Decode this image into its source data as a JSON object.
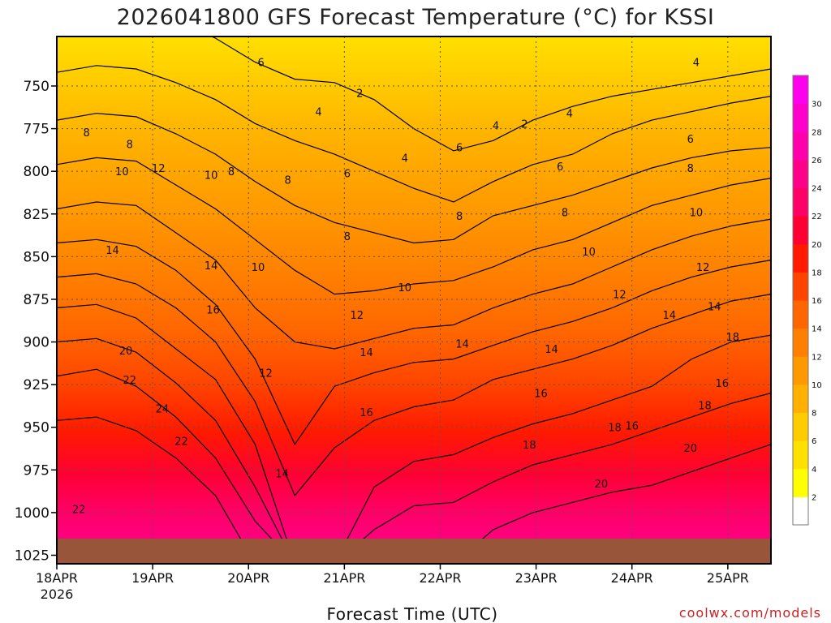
{
  "chart_data": {
    "type": "contour-filled",
    "title": "2026041800 GFS Forecast Temperature (°C) for KSSI",
    "xlabel": "Forecast Time (UTC)",
    "ylabel": "",
    "credit": "coolwx.com/models",
    "x_ticks": [
      "18APR",
      "19APR",
      "20APR",
      "21APR",
      "22APR",
      "23APR",
      "24APR",
      "25APR"
    ],
    "x_year": "2026",
    "y_ticks": [
      "750",
      "775",
      "800",
      "825",
      "850",
      "875",
      "900",
      "925",
      "950",
      "975",
      "1000",
      "1025"
    ],
    "y_unit": "hPa",
    "ylim": [
      1030,
      721
    ],
    "xlim_days": [
      0,
      7.45
    ],
    "grid": true,
    "colorbar": {
      "ticks": [
        "2",
        "4",
        "6",
        "8",
        "10",
        "12",
        "14",
        "16",
        "18",
        "20",
        "22",
        "24",
        "26",
        "28",
        "30"
      ],
      "colors": [
        "#ffffff",
        "#ffff00",
        "#ffe000",
        "#ffcc00",
        "#ffb000",
        "#ff9900",
        "#ff8000",
        "#ff6600",
        "#ff4400",
        "#ff1a00",
        "#ff0033",
        "#ff0066",
        "#ff0088",
        "#ff00aa",
        "#ff00cc",
        "#ff00ee"
      ]
    },
    "isotherms": [
      {
        "level": 4,
        "profile": [
          708,
          704,
          706,
          712,
          722,
          736,
          746,
          748,
          758,
          775,
          788,
          782,
          770,
          762,
          756,
          752,
          748,
          744,
          740
        ]
      },
      {
        "level": 6,
        "profile": [
          742,
          738,
          740,
          748,
          758,
          772,
          782,
          790,
          800,
          810,
          818,
          806,
          796,
          790,
          778,
          770,
          765,
          760,
          756
        ]
      },
      {
        "level": 8,
        "profile": [
          770,
          766,
          768,
          778,
          790,
          806,
          820,
          830,
          836,
          842,
          840,
          826,
          820,
          814,
          806,
          798,
          792,
          788,
          786
        ]
      },
      {
        "level": 10,
        "profile": [
          796,
          792,
          794,
          808,
          822,
          840,
          858,
          872,
          870,
          866,
          864,
          856,
          846,
          840,
          830,
          820,
          814,
          808,
          804
        ]
      },
      {
        "level": 12,
        "profile": [
          822,
          818,
          820,
          836,
          852,
          880,
          900,
          904,
          898,
          892,
          890,
          880,
          872,
          866,
          856,
          846,
          838,
          832,
          828
        ]
      },
      {
        "level": 14,
        "profile": [
          842,
          840,
          844,
          858,
          878,
          910,
          960,
          926,
          918,
          912,
          910,
          902,
          894,
          888,
          880,
          870,
          862,
          856,
          852
        ]
      },
      {
        "level": 16,
        "profile": [
          862,
          860,
          866,
          880,
          900,
          935,
          990,
          962,
          946,
          938,
          934,
          922,
          916,
          910,
          902,
          892,
          884,
          876,
          872
        ]
      },
      {
        "level": 18,
        "profile": [
          880,
          878,
          886,
          904,
          922,
          960,
          1030,
          1030,
          985,
          970,
          966,
          956,
          948,
          942,
          934,
          926,
          910,
          900,
          896
        ]
      },
      {
        "level": 20,
        "profile": [
          900,
          898,
          906,
          924,
          946,
          985,
          1030,
          1030,
          1010,
          996,
          994,
          982,
          972,
          966,
          960,
          952,
          944,
          936,
          930
        ]
      },
      {
        "level": 22,
        "profile": [
          920,
          916,
          926,
          944,
          968,
          1005,
          1030,
          1030,
          1030,
          1030,
          1030,
          1010,
          1000,
          994,
          988,
          984,
          976,
          968,
          960
        ]
      },
      {
        "level": 24,
        "profile": [
          946,
          944,
          952,
          968,
          990,
          1030,
          1030,
          1030,
          1030,
          1030,
          1030,
          1030,
          1030,
          1030,
          1030,
          1030,
          1030,
          1030,
          1030
        ]
      }
    ],
    "contour_labels": [
      {
        "text": "2",
        "day": 3.16,
        "p": 754
      },
      {
        "text": "2",
        "day": 4.88,
        "p": 772
      },
      {
        "text": "4",
        "day": 2.73,
        "p": 765
      },
      {
        "text": "4",
        "day": 3.63,
        "p": 792
      },
      {
        "text": "4",
        "day": 4.58,
        "p": 773
      },
      {
        "text": "4",
        "day": 5.35,
        "p": 766
      },
      {
        "text": "4",
        "day": 6.67,
        "p": 736
      },
      {
        "text": "6",
        "day": 2.13,
        "p": 736
      },
      {
        "text": "6",
        "day": 3.03,
        "p": 801
      },
      {
        "text": "6",
        "day": 4.2,
        "p": 786
      },
      {
        "text": "6",
        "day": 5.25,
        "p": 797
      },
      {
        "text": "6",
        "day": 6.61,
        "p": 781
      },
      {
        "text": "8",
        "day": 0.31,
        "p": 777
      },
      {
        "text": "8",
        "day": 0.76,
        "p": 784
      },
      {
        "text": "8",
        "day": 1.82,
        "p": 800
      },
      {
        "text": "8",
        "day": 2.41,
        "p": 805
      },
      {
        "text": "8",
        "day": 3.03,
        "p": 838
      },
      {
        "text": "8",
        "day": 4.2,
        "p": 826
      },
      {
        "text": "8",
        "day": 5.3,
        "p": 824
      },
      {
        "text": "8",
        "day": 6.61,
        "p": 798
      },
      {
        "text": "10",
        "day": 0.68,
        "p": 800
      },
      {
        "text": "10",
        "day": 1.61,
        "p": 802
      },
      {
        "text": "10",
        "day": 2.1,
        "p": 856
      },
      {
        "text": "10",
        "day": 3.63,
        "p": 868
      },
      {
        "text": "10",
        "day": 5.55,
        "p": 847
      },
      {
        "text": "10",
        "day": 6.67,
        "p": 824
      },
      {
        "text": "12",
        "day": 1.06,
        "p": 798
      },
      {
        "text": "12",
        "day": 2.18,
        "p": 918
      },
      {
        "text": "12",
        "day": 3.13,
        "p": 884
      },
      {
        "text": "12",
        "day": 5.87,
        "p": 872
      },
      {
        "text": "12",
        "day": 6.74,
        "p": 856
      },
      {
        "text": "14",
        "day": 0.58,
        "p": 846
      },
      {
        "text": "14",
        "day": 1.61,
        "p": 855
      },
      {
        "text": "14",
        "day": 2.35,
        "p": 977
      },
      {
        "text": "14",
        "day": 3.23,
        "p": 906
      },
      {
        "text": "14",
        "day": 4.23,
        "p": 901
      },
      {
        "text": "14",
        "day": 5.16,
        "p": 904
      },
      {
        "text": "14",
        "day": 6.39,
        "p": 884
      },
      {
        "text": "14",
        "day": 6.86,
        "p": 879
      },
      {
        "text": "16",
        "day": 1.63,
        "p": 881
      },
      {
        "text": "16",
        "day": 3.23,
        "p": 941
      },
      {
        "text": "16",
        "day": 5.05,
        "p": 930
      },
      {
        "text": "16",
        "day": 6.0,
        "p": 949
      },
      {
        "text": "16",
        "day": 6.94,
        "p": 924
      },
      {
        "text": "18",
        "day": 4.93,
        "p": 960
      },
      {
        "text": "18",
        "day": 5.82,
        "p": 950
      },
      {
        "text": "18",
        "day": 6.76,
        "p": 937
      },
      {
        "text": "18",
        "day": 7.05,
        "p": 897
      },
      {
        "text": "20",
        "day": 0.72,
        "p": 905
      },
      {
        "text": "20",
        "day": 5.68,
        "p": 983
      },
      {
        "text": "20",
        "day": 6.61,
        "p": 962
      },
      {
        "text": "22",
        "day": 0.76,
        "p": 922
      },
      {
        "text": "22",
        "day": 1.3,
        "p": 958
      },
      {
        "text": "22",
        "day": 0.23,
        "p": 998
      },
      {
        "text": "24",
        "day": 1.1,
        "p": 939
      }
    ]
  }
}
